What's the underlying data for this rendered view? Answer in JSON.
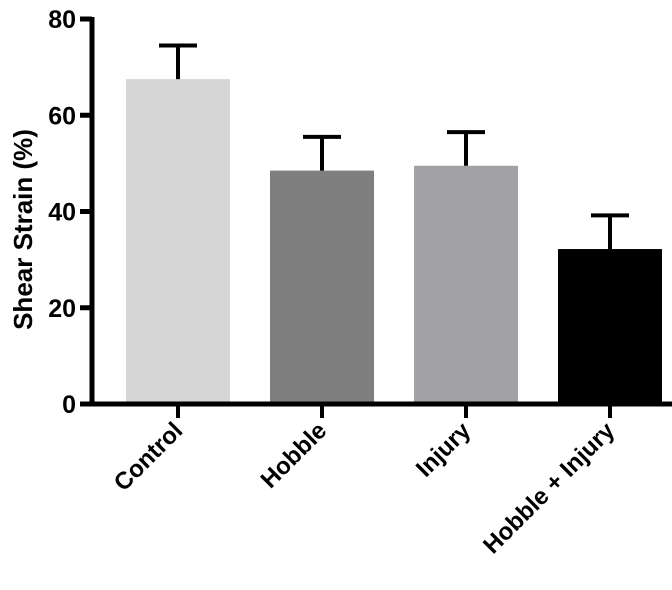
{
  "chart_data": {
    "type": "bar",
    "title": "",
    "xlabel": "",
    "ylabel": "Shear Strain (%)",
    "categories": [
      "Control",
      "Hobble",
      "Injury",
      "Hobble + Injury"
    ],
    "values": [
      67.5,
      48.5,
      49.5,
      32.2
    ],
    "errors": [
      7.0,
      7.0,
      7.0,
      7.0
    ],
    "colors": [
      "#d6d6d6",
      "#7f7f7f",
      "#a2a2a6",
      "#000000"
    ],
    "ylim": [
      0,
      80
    ],
    "yticks": [
      "0",
      "20",
      "40",
      "60",
      "80"
    ],
    "grid": false,
    "legend": "none"
  }
}
